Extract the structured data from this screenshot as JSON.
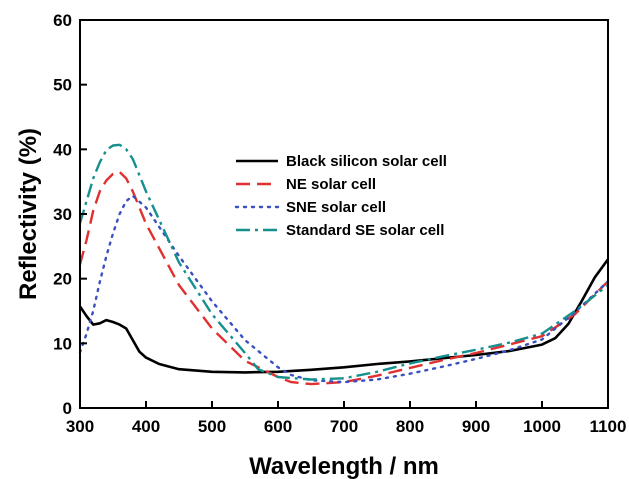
{
  "chart_data": {
    "type": "line",
    "xlabel": "Wavelength / nm",
    "ylabel": "Reflectivity (%)",
    "xlim": [
      300,
      1100
    ],
    "ylim": [
      0,
      60
    ],
    "xticks": [
      300,
      400,
      500,
      600,
      700,
      800,
      900,
      1000,
      1100
    ],
    "yticks": [
      0,
      10,
      20,
      30,
      40,
      50,
      60
    ],
    "grid": false,
    "legend_position": "top-right",
    "series": [
      {
        "name": "Black silicon solar cell",
        "color": "#000000",
        "dash": "solid",
        "points": [
          [
            300,
            15.7
          ],
          [
            310,
            14.2
          ],
          [
            320,
            12.9
          ],
          [
            330,
            13.1
          ],
          [
            340,
            13.6
          ],
          [
            350,
            13.3
          ],
          [
            360,
            12.9
          ],
          [
            370,
            12.3
          ],
          [
            380,
            10.5
          ],
          [
            390,
            8.7
          ],
          [
            400,
            7.8
          ],
          [
            420,
            6.8
          ],
          [
            450,
            6.0
          ],
          [
            500,
            5.6
          ],
          [
            550,
            5.5
          ],
          [
            600,
            5.6
          ],
          [
            650,
            5.9
          ],
          [
            700,
            6.3
          ],
          [
            750,
            6.8
          ],
          [
            800,
            7.2
          ],
          [
            850,
            7.7
          ],
          [
            900,
            8.2
          ],
          [
            950,
            8.8
          ],
          [
            1000,
            9.8
          ],
          [
            1020,
            10.8
          ],
          [
            1040,
            13.0
          ],
          [
            1060,
            16.5
          ],
          [
            1080,
            20.2
          ],
          [
            1100,
            23.0
          ]
        ]
      },
      {
        "name": "NE solar cell",
        "color": "#e03030",
        "dash": "dashed",
        "points": [
          [
            300,
            22.2
          ],
          [
            310,
            26.0
          ],
          [
            320,
            30.5
          ],
          [
            330,
            33.5
          ],
          [
            340,
            35.2
          ],
          [
            350,
            36.2
          ],
          [
            360,
            36.5
          ],
          [
            370,
            35.5
          ],
          [
            380,
            33.5
          ],
          [
            400,
            28.5
          ],
          [
            450,
            19.0
          ],
          [
            500,
            12.3
          ],
          [
            550,
            7.3
          ],
          [
            600,
            4.8
          ],
          [
            620,
            4.0
          ],
          [
            650,
            3.7
          ],
          [
            700,
            4.0
          ],
          [
            750,
            5.0
          ],
          [
            800,
            6.2
          ],
          [
            850,
            7.4
          ],
          [
            900,
            8.5
          ],
          [
            950,
            9.8
          ],
          [
            1000,
            11.1
          ],
          [
            1050,
            14.5
          ],
          [
            1100,
            19.6
          ]
        ]
      },
      {
        "name": "SNE solar cell",
        "color": "#3a4fc0",
        "dash": "dotted",
        "points": [
          [
            300,
            8.6
          ],
          [
            310,
            11.5
          ],
          [
            320,
            15.0
          ],
          [
            330,
            19.5
          ],
          [
            340,
            23.5
          ],
          [
            350,
            27.0
          ],
          [
            360,
            30.0
          ],
          [
            370,
            32.0
          ],
          [
            380,
            32.8
          ],
          [
            400,
            31.0
          ],
          [
            450,
            23.5
          ],
          [
            500,
            16.5
          ],
          [
            550,
            10.5
          ],
          [
            600,
            6.3
          ],
          [
            620,
            5.1
          ],
          [
            650,
            4.3
          ],
          [
            700,
            4.0
          ],
          [
            750,
            4.4
          ],
          [
            800,
            5.3
          ],
          [
            850,
            6.4
          ],
          [
            900,
            7.6
          ],
          [
            950,
            8.9
          ],
          [
            1000,
            10.6
          ],
          [
            1050,
            14.8
          ],
          [
            1100,
            19.6
          ]
        ]
      },
      {
        "name": "Standard SE solar cell",
        "color": "#16908e",
        "dash": "dashdot",
        "points": [
          [
            300,
            28.6
          ],
          [
            310,
            32.0
          ],
          [
            320,
            35.5
          ],
          [
            330,
            38.0
          ],
          [
            340,
            39.9
          ],
          [
            350,
            40.6
          ],
          [
            360,
            40.7
          ],
          [
            370,
            40.0
          ],
          [
            380,
            38.5
          ],
          [
            400,
            33.5
          ],
          [
            450,
            22.5
          ],
          [
            500,
            14.5
          ],
          [
            550,
            8.5
          ],
          [
            570,
            6.0
          ],
          [
            600,
            4.8
          ],
          [
            650,
            4.4
          ],
          [
            700,
            4.6
          ],
          [
            750,
            5.6
          ],
          [
            800,
            6.9
          ],
          [
            850,
            8.0
          ],
          [
            900,
            9.0
          ],
          [
            950,
            10.1
          ],
          [
            1000,
            11.5
          ],
          [
            1050,
            15.0
          ],
          [
            1100,
            19.0
          ]
        ]
      }
    ]
  }
}
